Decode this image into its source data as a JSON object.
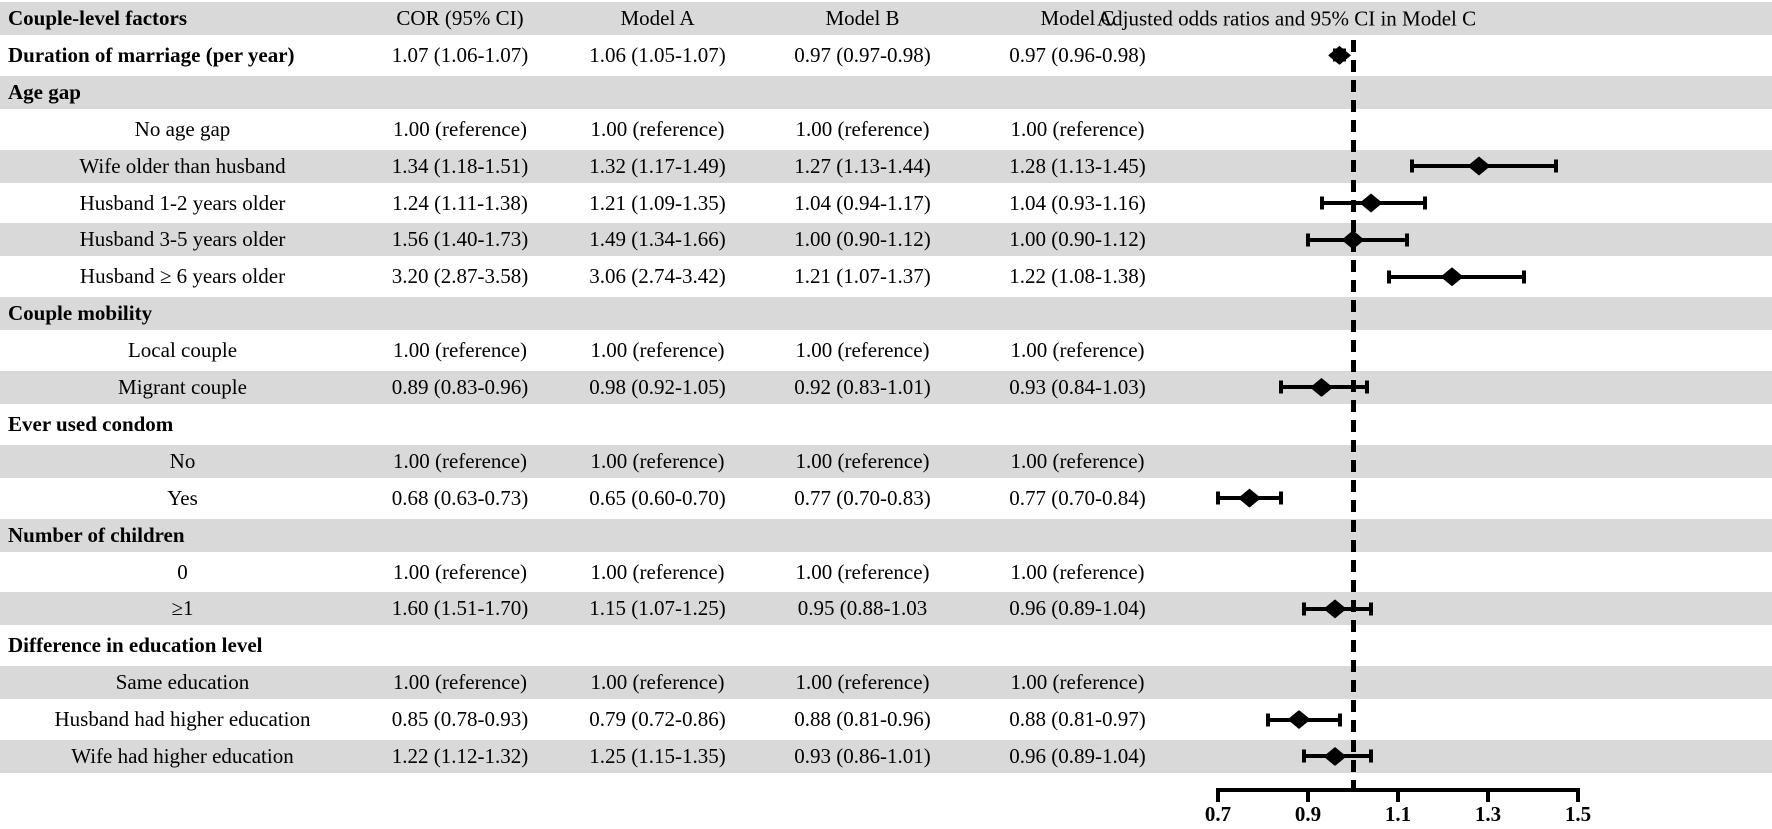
{
  "table": {
    "columns": [
      "Couple-level factors",
      "COR (95% CI)",
      "Model A",
      "Model B",
      "Model C"
    ],
    "forest_title": "Adjusted odds ratios and 95% CI  in Model C",
    "rows": [
      {
        "label": "Duration of marriage (per year)",
        "style": "bold-item",
        "cor": "1.07 (1.06-1.07)",
        "ma": "1.06 (1.05-1.07)",
        "mb": "0.97 (0.97-0.98)",
        "mc": "0.97 (0.96-0.98)",
        "est": 0.97,
        "lo": 0.96,
        "hi": 0.98
      },
      {
        "label": "Age gap",
        "style": "section",
        "cor": "",
        "ma": "",
        "mb": "",
        "mc": "",
        "est": null,
        "lo": null,
        "hi": null
      },
      {
        "label": "No age gap",
        "style": "item",
        "cor": "1.00 (reference)",
        "ma": "1.00 (reference)",
        "mb": "1.00 (reference)",
        "mc": "1.00 (reference)",
        "est": null,
        "lo": null,
        "hi": null
      },
      {
        "label": "Wife older than husband",
        "style": "item",
        "cor": "1.34 (1.18-1.51)",
        "ma": "1.32 (1.17-1.49)",
        "mb": "1.27 (1.13-1.44)",
        "mc": "1.28 (1.13-1.45)",
        "est": 1.28,
        "lo": 1.13,
        "hi": 1.45
      },
      {
        "label": "Husband 1-2 years older",
        "style": "item",
        "cor": "1.24 (1.11-1.38)",
        "ma": "1.21 (1.09-1.35)",
        "mb": "1.04 (0.94-1.17)",
        "mc": "1.04 (0.93-1.16)",
        "est": 1.04,
        "lo": 0.93,
        "hi": 1.16
      },
      {
        "label": "Husband 3-5 years older",
        "style": "item",
        "cor": "1.56 (1.40-1.73)",
        "ma": "1.49 (1.34-1.66)",
        "mb": "1.00 (0.90-1.12)",
        "mc": "1.00 (0.90-1.12)",
        "est": 1.0,
        "lo": 0.9,
        "hi": 1.12
      },
      {
        "label": "Husband ≥ 6 years older",
        "style": "item",
        "cor": "3.20 (2.87-3.58)",
        "ma": "3.06 (2.74-3.42)",
        "mb": "1.21 (1.07-1.37)",
        "mc": "1.22 (1.08-1.38)",
        "est": 1.22,
        "lo": 1.08,
        "hi": 1.38
      },
      {
        "label": "Couple mobility",
        "style": "section",
        "cor": "",
        "ma": "",
        "mb": "",
        "mc": "",
        "est": null,
        "lo": null,
        "hi": null
      },
      {
        "label": "Local couple",
        "style": "item",
        "cor": "1.00 (reference)",
        "ma": "1.00 (reference)",
        "mb": "1.00 (reference)",
        "mc": "1.00 (reference)",
        "est": null,
        "lo": null,
        "hi": null
      },
      {
        "label": "Migrant couple",
        "style": "item",
        "cor": "0.89 (0.83-0.96)",
        "ma": "0.98 (0.92-1.05)",
        "mb": "0.92 (0.83-1.01)",
        "mc": "0.93 (0.84-1.03)",
        "est": 0.93,
        "lo": 0.84,
        "hi": 1.03
      },
      {
        "label": "Ever used condom",
        "style": "section",
        "cor": "",
        "ma": "",
        "mb": "",
        "mc": "",
        "est": null,
        "lo": null,
        "hi": null
      },
      {
        "label": "No",
        "style": "item",
        "cor": "1.00 (reference)",
        "ma": "1.00 (reference)",
        "mb": "1.00 (reference)",
        "mc": "1.00 (reference)",
        "est": null,
        "lo": null,
        "hi": null
      },
      {
        "label": "Yes",
        "style": "item",
        "cor": "0.68 (0.63-0.73)",
        "ma": "0.65 (0.60-0.70)",
        "mb": "0.77 (0.70-0.83)",
        "mc": "0.77 (0.70-0.84)",
        "est": 0.77,
        "lo": 0.7,
        "hi": 0.84
      },
      {
        "label": "Number of children",
        "style": "section",
        "cor": "",
        "ma": "",
        "mb": "",
        "mc": "",
        "est": null,
        "lo": null,
        "hi": null
      },
      {
        "label": "0",
        "style": "item",
        "cor": "1.00 (reference)",
        "ma": "1.00 (reference)",
        "mb": "1.00 (reference)",
        "mc": "1.00 (reference)",
        "est": null,
        "lo": null,
        "hi": null
      },
      {
        "label": "≥1",
        "style": "item",
        "cor": "1.60 (1.51-1.70)",
        "ma": "1.15 (1.07-1.25)",
        "mb": "0.95 (0.88-1.03",
        "mc": "0.96 (0.89-1.04)",
        "est": 0.96,
        "lo": 0.89,
        "hi": 1.04
      },
      {
        "label": "Difference in education level",
        "style": "section",
        "cor": "",
        "ma": "",
        "mb": "",
        "mc": "",
        "est": null,
        "lo": null,
        "hi": null
      },
      {
        "label": "Same education",
        "style": "item",
        "cor": "1.00 (reference)",
        "ma": "1.00 (reference)",
        "mb": "1.00 (reference)",
        "mc": "1.00 (reference)",
        "est": null,
        "lo": null,
        "hi": null
      },
      {
        "label": "Husband had higher education",
        "style": "item",
        "cor": "0.85 (0.78-0.93)",
        "ma": "0.79 (0.72-0.86)",
        "mb": "0.88 (0.81-0.96)",
        "mc": "0.88 (0.81-0.97)",
        "est": 0.88,
        "lo": 0.81,
        "hi": 0.97
      },
      {
        "label": "Wife had higher education",
        "style": "item",
        "cor": "1.22 (1.12-1.32)",
        "ma": "1.25 (1.15-1.35)",
        "mb": "0.93 (0.86-1.01)",
        "mc": "0.96 (0.89-1.04)",
        "est": 0.96,
        "lo": 0.89,
        "hi": 1.04
      }
    ]
  },
  "axis": {
    "ticks": [
      {
        "label": "0.7",
        "value": 0.7
      },
      {
        "label": "0.9",
        "value": 0.9
      },
      {
        "label": "1.1",
        "value": 1.1
      },
      {
        "label": "1.3",
        "value": 1.3
      },
      {
        "label": "1.5",
        "value": 1.5
      }
    ],
    "ref_line": 1.0
  },
  "colors": {
    "band": "#d9d9d9",
    "ink": "#000000"
  },
  "chart_data": {
    "type": "scatter",
    "variant": "forest-plot",
    "title": "Adjusted odds ratios and 95% CI  in Model C",
    "x_ticks": [
      0.7,
      0.9,
      1.1,
      1.3,
      1.5
    ],
    "xlim": [
      0.7,
      1.5
    ],
    "reference_line_x": 1.0,
    "grid": false,
    "points": [
      {
        "label": "Duration of marriage (per year)",
        "or": 0.97,
        "ci_low": 0.96,
        "ci_high": 0.98
      },
      {
        "label": "Wife older than husband",
        "or": 1.28,
        "ci_low": 1.13,
        "ci_high": 1.45
      },
      {
        "label": "Husband 1-2 years older",
        "or": 1.04,
        "ci_low": 0.93,
        "ci_high": 1.16
      },
      {
        "label": "Husband 3-5 years older",
        "or": 1.0,
        "ci_low": 0.9,
        "ci_high": 1.12
      },
      {
        "label": "Husband ≥ 6 years older",
        "or": 1.22,
        "ci_low": 1.08,
        "ci_high": 1.38
      },
      {
        "label": "Migrant couple",
        "or": 0.93,
        "ci_low": 0.84,
        "ci_high": 1.03
      },
      {
        "label": "Yes",
        "or": 0.77,
        "ci_low": 0.7,
        "ci_high": 0.84
      },
      {
        "label": "≥1",
        "or": 0.96,
        "ci_low": 0.89,
        "ci_high": 1.04
      },
      {
        "label": "Husband had higher education",
        "or": 0.88,
        "ci_low": 0.81,
        "ci_high": 0.97
      },
      {
        "label": "Wife had higher education",
        "or": 0.96,
        "ci_low": 0.89,
        "ci_high": 1.04
      }
    ],
    "table_columns": [
      "Couple-level factors",
      "COR (95% CI)",
      "Model A",
      "Model B",
      "Model C"
    ]
  }
}
